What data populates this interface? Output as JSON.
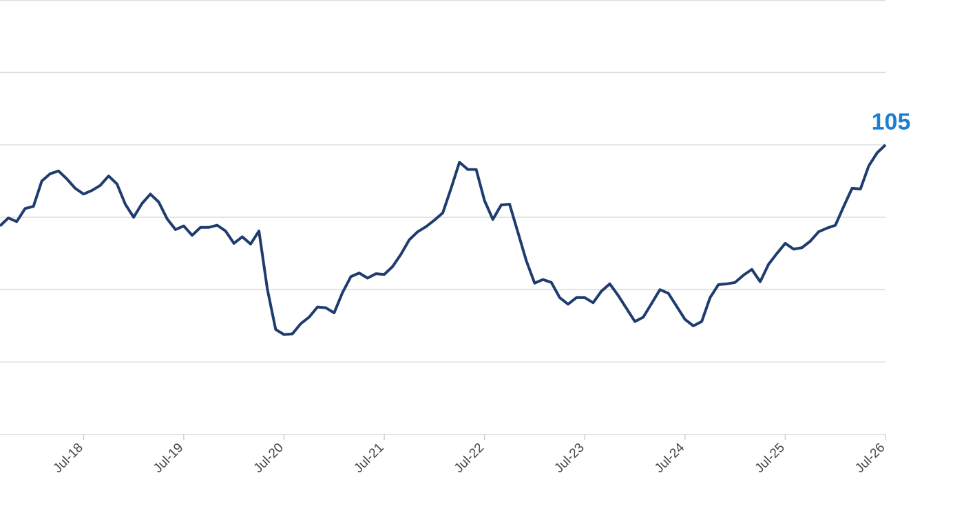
{
  "chart_data": {
    "type": "line",
    "categories": [
      null,
      null,
      null,
      null,
      null,
      null,
      null,
      null,
      null,
      null,
      "Jul-18",
      null,
      null,
      null,
      null,
      null,
      null,
      null,
      null,
      null,
      null,
      null,
      "Jul-19",
      null,
      null,
      null,
      null,
      null,
      null,
      null,
      null,
      null,
      null,
      null,
      "Jul-20",
      null,
      null,
      null,
      null,
      null,
      null,
      null,
      null,
      null,
      null,
      null,
      "Jul-21",
      null,
      null,
      null,
      null,
      null,
      null,
      null,
      null,
      null,
      null,
      null,
      "Jul-22",
      null,
      null,
      null,
      null,
      null,
      null,
      null,
      null,
      null,
      null,
      null,
      "Jul-23",
      null,
      null,
      null,
      null,
      null,
      null,
      null,
      null,
      null,
      null,
      null,
      "Jul-24",
      null,
      null,
      null,
      null,
      null,
      null,
      null,
      null,
      null,
      null,
      null,
      "Jul-25",
      null,
      null,
      null,
      null,
      null,
      null,
      null,
      null,
      null,
      null,
      null,
      "Jul-26"
    ],
    "series": [
      {
        "color": "#1f3c6e",
        "values": [
          99.4,
          99.95,
          99.7,
          100.6,
          100.75,
          102.5,
          103.0,
          103.2,
          102.65,
          102.0,
          101.6,
          101.85,
          102.2,
          102.85,
          102.3,
          100.9,
          100.0,
          100.95,
          101.6,
          101.05,
          99.9,
          99.15,
          99.4,
          98.75,
          99.3,
          99.3,
          99.45,
          99.05,
          98.2,
          98.65,
          98.15,
          99.05,
          95.05,
          92.25,
          91.9,
          91.95,
          92.65,
          93.1,
          93.8,
          93.75,
          93.4,
          94.8,
          95.9,
          96.15,
          95.8,
          96.1,
          96.05,
          96.6,
          97.45,
          98.45,
          99.0,
          99.35,
          99.8,
          100.3,
          102.0,
          103.8,
          103.3,
          103.3,
          101.15,
          99.85,
          100.85,
          100.9,
          98.95,
          97.0,
          95.45,
          95.7,
          95.5,
          94.45,
          94.0,
          94.45,
          94.45,
          94.1,
          94.9,
          95.4,
          94.6,
          93.7,
          92.8,
          93.1,
          94.05,
          95.0,
          94.75,
          93.85,
          92.95,
          92.5,
          92.8,
          94.45,
          95.35,
          95.4,
          95.5,
          96.0,
          96.4,
          95.55,
          96.75,
          97.5,
          98.2,
          97.8,
          97.9,
          98.35,
          99.0,
          99.25,
          99.45,
          100.75,
          102.0,
          101.95,
          103.55,
          104.45,
          105
        ]
      }
    ],
    "label_color": "#1a7fd4",
    "ylim": [
      85,
      115
    ],
    "yticks": [
      85,
      90,
      95,
      100,
      105,
      110,
      115
    ],
    "grid": true
  }
}
